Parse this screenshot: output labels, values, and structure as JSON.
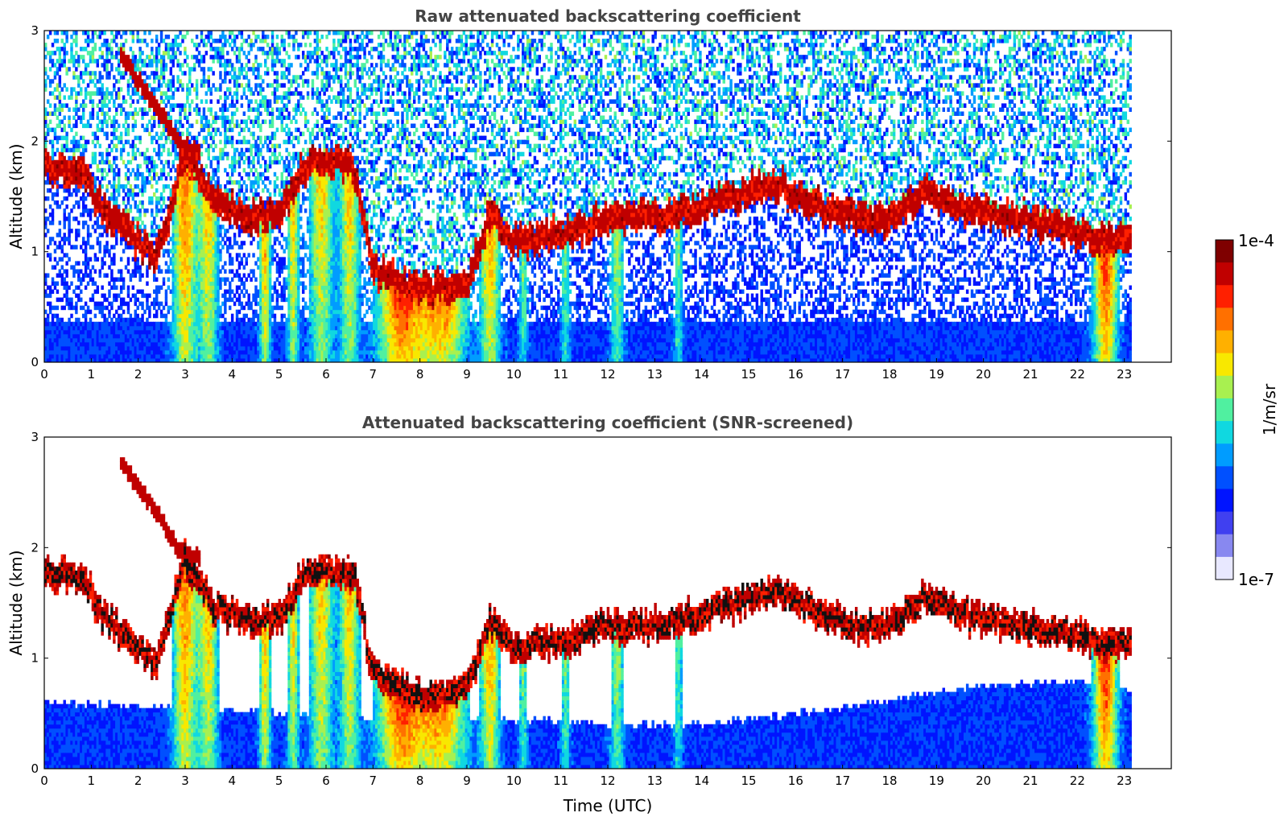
{
  "chart_data": [
    {
      "type": "heatmap",
      "title": "Raw attenuated backscattering coefficient",
      "xlabel": "",
      "ylabel": "Altitude (km)",
      "xlim": [
        0,
        24
      ],
      "ylim": [
        0,
        3
      ],
      "x_ticks": [
        "0",
        "1",
        "2",
        "3",
        "4",
        "5",
        "6",
        "7",
        "8",
        "9",
        "10",
        "11",
        "12",
        "13",
        "14",
        "15",
        "16",
        "17",
        "18",
        "19",
        "20",
        "21",
        "22",
        "23"
      ],
      "y_ticks": [
        "0",
        "1",
        "2",
        "3"
      ],
      "data_end_time": 23.15,
      "screened": false,
      "cloud_base_km": {
        "time": [
          0,
          0.9,
          1.1,
          1.7,
          2.4,
          3.0,
          3.6,
          4.3,
          5.0,
          5.6,
          6.3,
          6.6,
          7.0,
          8.0,
          9.0,
          9.5,
          10.0,
          11.0,
          12.0,
          13.0,
          14.0,
          15.0,
          15.7,
          16.5,
          17.3,
          18.0,
          18.7,
          19.5,
          20.5,
          21.5,
          22.3,
          23.1
        ],
        "altitude": [
          1.8,
          1.7,
          1.45,
          1.2,
          0.95,
          1.9,
          1.45,
          1.35,
          1.35,
          1.8,
          1.8,
          1.75,
          0.85,
          0.65,
          0.7,
          1.35,
          1.1,
          1.15,
          1.3,
          1.3,
          1.4,
          1.55,
          1.6,
          1.4,
          1.3,
          1.3,
          1.55,
          1.4,
          1.3,
          1.25,
          1.15,
          1.1
        ]
      },
      "upper_layer_km": {
        "time": [
          1.6,
          2.0,
          2.5,
          2.9,
          3.3
        ],
        "altitude": [
          2.8,
          2.55,
          2.25,
          1.95,
          1.9
        ]
      }
    },
    {
      "type": "heatmap",
      "title": "Attenuated backscattering coefficient (SNR-screened)",
      "xlabel": "Time (UTC)",
      "ylabel": "Altitude (km)",
      "xlim": [
        0,
        24
      ],
      "ylim": [
        0,
        3
      ],
      "x_ticks": [
        "0",
        "1",
        "2",
        "3",
        "4",
        "5",
        "6",
        "7",
        "8",
        "9",
        "10",
        "11",
        "12",
        "13",
        "14",
        "15",
        "16",
        "17",
        "18",
        "19",
        "20",
        "21",
        "22",
        "23"
      ],
      "y_ticks": [
        "0",
        "1",
        "2",
        "3"
      ],
      "data_end_time": 23.15,
      "screened": true,
      "boundary_layer_top_km": {
        "time": [
          0,
          3,
          7,
          10,
          12,
          14,
          16,
          18.5,
          20,
          22,
          23.15
        ],
        "altitude": [
          0.6,
          0.55,
          0.45,
          0.45,
          0.4,
          0.4,
          0.5,
          0.65,
          0.75,
          0.8,
          0.7
        ]
      }
    }
  ],
  "colorbar": {
    "label": "1/m/sr",
    "max_label": "1e-4",
    "min_label": "1e-7",
    "colors": [
      "#7f0000",
      "#c00000",
      "#ff2000",
      "#ff7000",
      "#ffb000",
      "#f8e800",
      "#a8f050",
      "#50f0a0",
      "#10d8e0",
      "#009cff",
      "#0050ff",
      "#0014ff",
      "#4040f0",
      "#8888f0",
      "#e8e8ff"
    ]
  }
}
